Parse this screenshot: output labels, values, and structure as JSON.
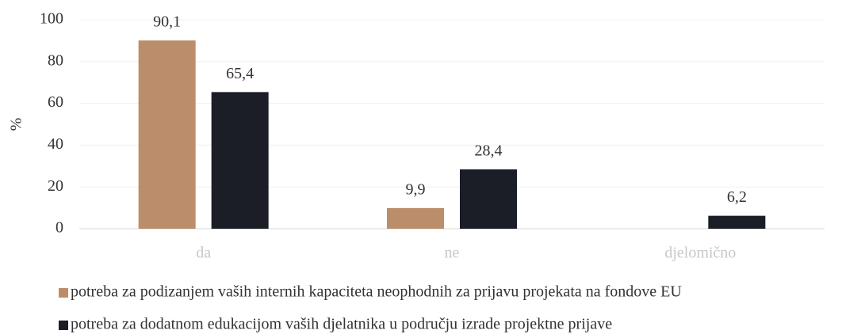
{
  "chart_data": {
    "type": "bar",
    "ylabel": "%",
    "categories": [
      "da",
      "ne",
      "djelomično"
    ],
    "series": [
      {
        "name": "potreba za podizanjem vaših internih kapaciteta neophodnih za prijavu projekata na fondove EU",
        "color": "#bc8d6b",
        "values": [
          90.1,
          9.9,
          null
        ],
        "value_labels": [
          "90,1",
          "9,9",
          null
        ]
      },
      {
        "name": "potreba za dodatnom edukacijom vaših djelatnika u području izrade projektne prijave",
        "color": "#1b1e27",
        "values": [
          65.4,
          28.4,
          6.2
        ],
        "value_labels": [
          "65,4",
          "28,4",
          "6,2"
        ]
      }
    ],
    "ylim": [
      0,
      100
    ],
    "yticks": [
      0,
      20,
      40,
      60,
      80,
      100
    ],
    "grid": true,
    "legend": "bottom"
  }
}
